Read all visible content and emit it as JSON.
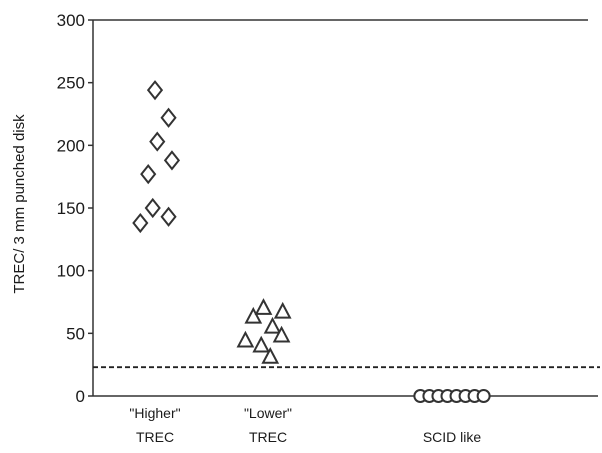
{
  "chart_data": {
    "type": "scatter",
    "ylabel": "TREC/ 3 mm punched disk",
    "ylim": [
      0,
      300
    ],
    "yticks": [
      0,
      50,
      100,
      150,
      200,
      250,
      300
    ],
    "categories": [
      {
        "line1": "\"Higher\"",
        "line2": "TREC"
      },
      {
        "line1": "\"Lower\"",
        "line2": "TREC"
      },
      {
        "line1": "",
        "line2": "SCID like"
      }
    ],
    "series": [
      {
        "marker": "diamond",
        "points": [
          {
            "x": -0.13,
            "y": 138
          },
          {
            "x": -0.02,
            "y": 150
          },
          {
            "x": 0.12,
            "y": 143
          },
          {
            "x": -0.06,
            "y": 177
          },
          {
            "x": 0.15,
            "y": 188
          },
          {
            "x": 0.02,
            "y": 203
          },
          {
            "x": 0.12,
            "y": 222
          },
          {
            "x": 0.0,
            "y": 244
          }
        ]
      },
      {
        "marker": "triangle",
        "points": [
          {
            "x": 0.8,
            "y": 44
          },
          {
            "x": 0.87,
            "y": 63
          },
          {
            "x": 0.94,
            "y": 40
          },
          {
            "x": 0.96,
            "y": 70
          },
          {
            "x": 1.04,
            "y": 55
          },
          {
            "x": 1.02,
            "y": 31
          },
          {
            "x": 1.12,
            "y": 48
          },
          {
            "x": 1.13,
            "y": 67
          }
        ]
      },
      {
        "marker": "circle",
        "points": [
          {
            "x": 1.72,
            "y": 0
          },
          {
            "x": 1.8,
            "y": 0
          },
          {
            "x": 1.88,
            "y": 0
          },
          {
            "x": 1.96,
            "y": 0
          },
          {
            "x": 2.04,
            "y": 0
          },
          {
            "x": 2.12,
            "y": 0
          },
          {
            "x": 2.2,
            "y": 0
          },
          {
            "x": 2.28,
            "y": 0
          }
        ]
      }
    ],
    "reference_lines": [
      {
        "axis": "y",
        "value": 23,
        "style": "dashed"
      }
    ],
    "grid": false,
    "colors": {
      "marker_stroke": "#333333",
      "axis": "#333333"
    }
  }
}
